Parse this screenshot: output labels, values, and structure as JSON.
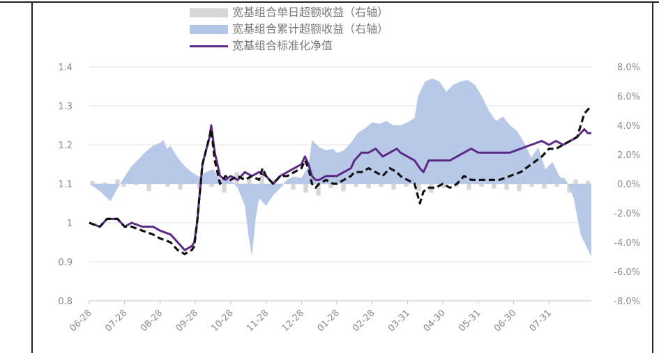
{
  "chart_data": {
    "type": "line",
    "legend": [
      {
        "label": "宽基组合单日超额收益（右轴）",
        "kind": "bar",
        "color": "#d6d6d6"
      },
      {
        "label": "宽基组合累计超额收益（右轴）",
        "kind": "area",
        "color": "#b4c6e7"
      },
      {
        "label": "宽基组合标准化净值",
        "kind": "line",
        "color": "#5b2a86"
      }
    ],
    "legend_position": "top",
    "x_ticks": [
      "06-28",
      "07-28",
      "08-28",
      "09-28",
      "10-28",
      "11-28",
      "12-28",
      "01-28",
      "02-28",
      "03-31",
      "04-30",
      "05-31",
      "06-30",
      "07-31"
    ],
    "y_left": {
      "ticks": [
        "1.4",
        "1.3",
        "1.2",
        "1.1",
        "1",
        "0.9",
        "0.8"
      ],
      "range": [
        0.8,
        1.4
      ]
    },
    "y_right": {
      "ticks": [
        "8.0%",
        "6.0%",
        "4.0%",
        "2.0%",
        "0.0%",
        "-2.0%",
        "-4.0%",
        "-6.0%",
        "-8.0%"
      ],
      "range": [
        -8.0,
        8.0
      ]
    },
    "grid": "horizontal",
    "x_index_range": [
      0,
      14.2
    ],
    "series": [
      {
        "name": "宽基组合标准化净值",
        "axis": "left",
        "style": "solid",
        "color": "#5b2a86",
        "points": [
          [
            0,
            1.0
          ],
          [
            0.3,
            0.99
          ],
          [
            0.5,
            1.01
          ],
          [
            0.8,
            1.01
          ],
          [
            1.0,
            0.99
          ],
          [
            1.2,
            1.0
          ],
          [
            1.5,
            0.99
          ],
          [
            1.8,
            0.99
          ],
          [
            2.0,
            0.98
          ],
          [
            2.3,
            0.97
          ],
          [
            2.5,
            0.95
          ],
          [
            2.7,
            0.93
          ],
          [
            2.9,
            0.94
          ],
          [
            2.97,
            0.95
          ],
          [
            3.05,
            1.0
          ],
          [
            3.2,
            1.15
          ],
          [
            3.4,
            1.22
          ],
          [
            3.45,
            1.25
          ],
          [
            3.55,
            1.18
          ],
          [
            3.7,
            1.12
          ],
          [
            3.85,
            1.11
          ],
          [
            4.0,
            1.12
          ],
          [
            4.2,
            1.11
          ],
          [
            4.4,
            1.13
          ],
          [
            4.6,
            1.12
          ],
          [
            4.8,
            1.13
          ],
          [
            5.0,
            1.12
          ],
          [
            5.1,
            1.11
          ],
          [
            5.2,
            1.1
          ],
          [
            5.4,
            1.12
          ],
          [
            5.6,
            1.13
          ],
          [
            5.8,
            1.14
          ],
          [
            6.0,
            1.15
          ],
          [
            6.1,
            1.17
          ],
          [
            6.2,
            1.15
          ],
          [
            6.3,
            1.12
          ],
          [
            6.4,
            1.11
          ],
          [
            6.5,
            1.11
          ],
          [
            6.7,
            1.12
          ],
          [
            6.9,
            1.12
          ],
          [
            7.0,
            1.12
          ],
          [
            7.2,
            1.13
          ],
          [
            7.4,
            1.14
          ],
          [
            7.5,
            1.16
          ],
          [
            7.7,
            1.18
          ],
          [
            7.9,
            1.18
          ],
          [
            8.1,
            1.19
          ],
          [
            8.3,
            1.17
          ],
          [
            8.5,
            1.18
          ],
          [
            8.7,
            1.19
          ],
          [
            8.8,
            1.18
          ],
          [
            9.0,
            1.17
          ],
          [
            9.2,
            1.16
          ],
          [
            9.35,
            1.14
          ],
          [
            9.45,
            1.13
          ],
          [
            9.6,
            1.16
          ],
          [
            9.8,
            1.16
          ],
          [
            10.0,
            1.16
          ],
          [
            10.2,
            1.16
          ],
          [
            10.4,
            1.17
          ],
          [
            10.6,
            1.18
          ],
          [
            10.8,
            1.19
          ],
          [
            11.0,
            1.18
          ],
          [
            11.3,
            1.18
          ],
          [
            11.6,
            1.18
          ],
          [
            11.9,
            1.18
          ],
          [
            12.2,
            1.19
          ],
          [
            12.5,
            1.2
          ],
          [
            12.8,
            1.21
          ],
          [
            13.0,
            1.2
          ],
          [
            13.2,
            1.21
          ],
          [
            13.4,
            1.2
          ],
          [
            13.6,
            1.21
          ],
          [
            13.8,
            1.22
          ],
          [
            14.0,
            1.24
          ],
          [
            14.1,
            1.23
          ],
          [
            14.2,
            1.23
          ]
        ]
      },
      {
        "name": "",
        "axis": "left",
        "style": "dashed",
        "color": "#111111",
        "points": [
          [
            0,
            1.0
          ],
          [
            0.3,
            0.99
          ],
          [
            0.5,
            1.01
          ],
          [
            0.8,
            1.01
          ],
          [
            1.0,
            0.99
          ],
          [
            1.2,
            0.99
          ],
          [
            1.5,
            0.98
          ],
          [
            1.8,
            0.97
          ],
          [
            2.0,
            0.96
          ],
          [
            2.3,
            0.95
          ],
          [
            2.5,
            0.93
          ],
          [
            2.7,
            0.92
          ],
          [
            2.9,
            0.93
          ],
          [
            2.97,
            0.94
          ],
          [
            3.05,
            1.0
          ],
          [
            3.2,
            1.15
          ],
          [
            3.4,
            1.22
          ],
          [
            3.45,
            1.24
          ],
          [
            3.55,
            1.16
          ],
          [
            3.7,
            1.1
          ],
          [
            3.85,
            1.12
          ],
          [
            4.0,
            1.11
          ],
          [
            4.2,
            1.12
          ],
          [
            4.4,
            1.11
          ],
          [
            4.6,
            1.12
          ],
          [
            4.8,
            1.11
          ],
          [
            4.9,
            1.14
          ],
          [
            5.0,
            1.12
          ],
          [
            5.1,
            1.11
          ],
          [
            5.2,
            1.1
          ],
          [
            5.4,
            1.12
          ],
          [
            5.6,
            1.12
          ],
          [
            5.8,
            1.13
          ],
          [
            6.0,
            1.14
          ],
          [
            6.1,
            1.16
          ],
          [
            6.2,
            1.14
          ],
          [
            6.3,
            1.1
          ],
          [
            6.4,
            1.09
          ],
          [
            6.5,
            1.1
          ],
          [
            6.7,
            1.11
          ],
          [
            6.9,
            1.1
          ],
          [
            7.0,
            1.1
          ],
          [
            7.2,
            1.11
          ],
          [
            7.4,
            1.12
          ],
          [
            7.5,
            1.13
          ],
          [
            7.7,
            1.13
          ],
          [
            7.9,
            1.14
          ],
          [
            8.1,
            1.13
          ],
          [
            8.3,
            1.12
          ],
          [
            8.5,
            1.14
          ],
          [
            8.7,
            1.13
          ],
          [
            8.8,
            1.12
          ],
          [
            9.0,
            1.11
          ],
          [
            9.2,
            1.1
          ],
          [
            9.35,
            1.05
          ],
          [
            9.45,
            1.08
          ],
          [
            9.6,
            1.09
          ],
          [
            9.8,
            1.09
          ],
          [
            10.0,
            1.1
          ],
          [
            10.2,
            1.09
          ],
          [
            10.4,
            1.1
          ],
          [
            10.6,
            1.12
          ],
          [
            10.8,
            1.11
          ],
          [
            11.0,
            1.11
          ],
          [
            11.3,
            1.11
          ],
          [
            11.6,
            1.11
          ],
          [
            11.9,
            1.12
          ],
          [
            12.2,
            1.13
          ],
          [
            12.5,
            1.15
          ],
          [
            12.8,
            1.17
          ],
          [
            13.0,
            1.19
          ],
          [
            13.2,
            1.19
          ],
          [
            13.4,
            1.2
          ],
          [
            13.6,
            1.21
          ],
          [
            13.8,
            1.22
          ],
          [
            14.0,
            1.28
          ],
          [
            14.1,
            1.29
          ],
          [
            14.2,
            1.3
          ]
        ]
      },
      {
        "name": "宽基组合累计超额收益（右轴）",
        "axis": "right",
        "style": "area",
        "color": "#b4c6e7",
        "points": [
          [
            0,
            0.0
          ],
          [
            0.3,
            -0.5
          ],
          [
            0.6,
            -1.2
          ],
          [
            0.8,
            -0.3
          ],
          [
            1.0,
            0.5
          ],
          [
            1.2,
            1.2
          ],
          [
            1.4,
            1.7
          ],
          [
            1.6,
            2.2
          ],
          [
            1.8,
            2.6
          ],
          [
            2.0,
            2.8
          ],
          [
            2.1,
            3.0
          ],
          [
            2.2,
            2.4
          ],
          [
            2.3,
            2.6
          ],
          [
            2.5,
            1.8
          ],
          [
            2.7,
            1.2
          ],
          [
            2.9,
            0.8
          ],
          [
            3.1,
            0.5
          ],
          [
            3.3,
            0.8
          ],
          [
            3.5,
            1.0
          ],
          [
            3.7,
            0.3
          ],
          [
            4.0,
            0.3
          ],
          [
            4.2,
            -0.3
          ],
          [
            4.4,
            -1.5
          ],
          [
            4.5,
            -3.5
          ],
          [
            4.6,
            -5.0
          ],
          [
            4.7,
            -2.5
          ],
          [
            4.8,
            -1.0
          ],
          [
            5.0,
            -1.5
          ],
          [
            5.2,
            -0.8
          ],
          [
            5.4,
            -0.3
          ],
          [
            5.6,
            0.3
          ],
          [
            5.8,
            0.5
          ],
          [
            6.0,
            0.4
          ],
          [
            6.2,
            1.2
          ],
          [
            6.3,
            3.0
          ],
          [
            6.5,
            2.5
          ],
          [
            6.7,
            2.3
          ],
          [
            6.9,
            2.4
          ],
          [
            7.0,
            2.1
          ],
          [
            7.2,
            2.3
          ],
          [
            7.4,
            2.8
          ],
          [
            7.6,
            3.5
          ],
          [
            7.8,
            3.8
          ],
          [
            8.0,
            4.2
          ],
          [
            8.2,
            4.1
          ],
          [
            8.4,
            4.3
          ],
          [
            8.6,
            4.0
          ],
          [
            8.8,
            4.0
          ],
          [
            9.0,
            4.2
          ],
          [
            9.2,
            4.5
          ],
          [
            9.3,
            6.0
          ],
          [
            9.5,
            7.0
          ],
          [
            9.7,
            7.2
          ],
          [
            9.9,
            7.0
          ],
          [
            10.1,
            6.3
          ],
          [
            10.3,
            6.8
          ],
          [
            10.5,
            7.0
          ],
          [
            10.7,
            7.1
          ],
          [
            10.9,
            6.8
          ],
          [
            11.1,
            6.0
          ],
          [
            11.3,
            5.0
          ],
          [
            11.5,
            4.3
          ],
          [
            11.7,
            4.6
          ],
          [
            11.9,
            4.0
          ],
          [
            12.1,
            3.6
          ],
          [
            12.3,
            2.8
          ],
          [
            12.5,
            1.8
          ],
          [
            12.7,
            2.5
          ],
          [
            12.9,
            1.0
          ],
          [
            13.1,
            1.5
          ],
          [
            13.3,
            0.5
          ],
          [
            13.5,
            0.2
          ],
          [
            13.7,
            -1.0
          ],
          [
            13.9,
            -3.5
          ],
          [
            14.1,
            -4.5
          ],
          [
            14.2,
            -5.0
          ]
        ]
      },
      {
        "name": "宽基组合单日超额收益（右轴）",
        "axis": "right",
        "style": "bars",
        "color": "#d6d6d6",
        "values": [
          0.2,
          -0.3,
          0.1,
          -0.4,
          0.3,
          -0.2,
          0.4,
          -0.1,
          0.2,
          -0.5,
          0.3,
          0.1,
          -0.2,
          0.3,
          -0.4,
          0.2,
          0.5,
          -0.3,
          0.6,
          -0.2,
          0.3,
          -0.6,
          0.2,
          0.8,
          -0.7,
          0.4,
          -0.3,
          0.6,
          -0.5,
          0.3,
          -0.2,
          0.2,
          -0.4,
          0.3,
          -0.6,
          1.2,
          -0.8,
          0.4,
          -0.3,
          0.2,
          -0.5,
          0.6,
          -0.2,
          0.3,
          -0.3,
          0.4,
          -0.2,
          0.5,
          -0.4,
          0.3,
          -0.2,
          0.7,
          -0.5,
          0.3,
          -0.6,
          0.4,
          -0.3,
          0.2,
          -0.2,
          0.5,
          -0.4,
          0.3,
          -0.2,
          0.6,
          -0.3,
          0.2,
          -0.4,
          0.3,
          -0.5,
          0.4,
          -0.2,
          0.3,
          -0.3,
          0.5,
          -0.2,
          0.4,
          -0.6,
          0.3,
          -0.3,
          0.2
        ]
      }
    ]
  }
}
